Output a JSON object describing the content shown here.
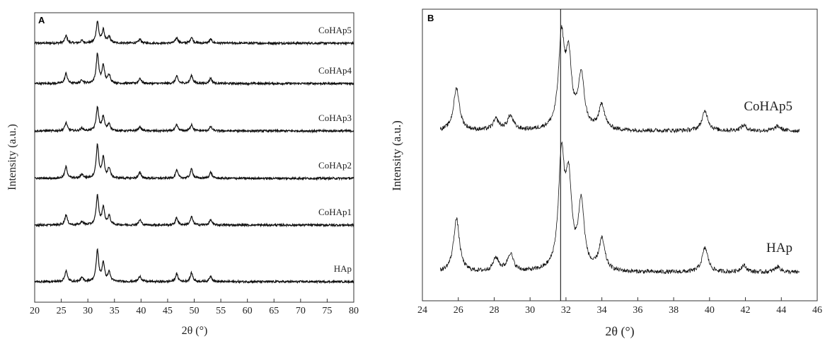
{
  "chart_data": [
    {
      "panel": "A",
      "type": "line",
      "xlabel": "2θ (°)",
      "ylabel": "Intensity (a.u.)",
      "xlim": [
        20,
        80
      ],
      "x_ticks": [
        20,
        25,
        30,
        35,
        40,
        45,
        50,
        55,
        60,
        65,
        70,
        75,
        80
      ],
      "series": [
        {
          "name": "CoHAp5",
          "scale": 0.55
        },
        {
          "name": "CoHAp4",
          "scale": 0.75
        },
        {
          "name": "CoHAp3",
          "scale": 0.6
        },
        {
          "name": "CoHAp2",
          "scale": 0.85
        },
        {
          "name": "CoHAp1",
          "scale": 0.75
        },
        {
          "name": "HAp",
          "scale": 0.8
        }
      ],
      "peaks_2theta": [
        {
          "x": 25.9,
          "h": 0.35
        },
        {
          "x": 28.9,
          "h": 0.12
        },
        {
          "x": 31.8,
          "h": 1.0
        },
        {
          "x": 32.9,
          "h": 0.6
        },
        {
          "x": 34.0,
          "h": 0.3
        },
        {
          "x": 39.8,
          "h": 0.18
        },
        {
          "x": 46.7,
          "h": 0.25
        },
        {
          "x": 49.5,
          "h": 0.28
        },
        {
          "x": 53.1,
          "h": 0.18
        }
      ]
    },
    {
      "panel": "B",
      "type": "line",
      "xlabel": "2θ (°)",
      "ylabel": "Intensity (a.u.)",
      "xlim": [
        24,
        46
      ],
      "x_ticks": [
        24,
        26,
        28,
        30,
        32,
        34,
        36,
        38,
        40,
        42,
        44,
        46
      ],
      "reference_line_x": 31.7,
      "series": [
        {
          "name": "CoHAp5",
          "scale": 1.0
        },
        {
          "name": "HAp",
          "scale": 1.25
        }
      ],
      "peaks_2theta": [
        {
          "x": 25.9,
          "h": 0.48
        },
        {
          "x": 28.1,
          "h": 0.12
        },
        {
          "x": 28.9,
          "h": 0.16
        },
        {
          "x": 31.75,
          "h": 1.0
        },
        {
          "x": 32.15,
          "h": 0.75
        },
        {
          "x": 32.85,
          "h": 0.6
        },
        {
          "x": 34.0,
          "h": 0.28
        },
        {
          "x": 39.75,
          "h": 0.22
        },
        {
          "x": 41.9,
          "h": 0.06
        },
        {
          "x": 43.8,
          "h": 0.05
        }
      ]
    }
  ]
}
